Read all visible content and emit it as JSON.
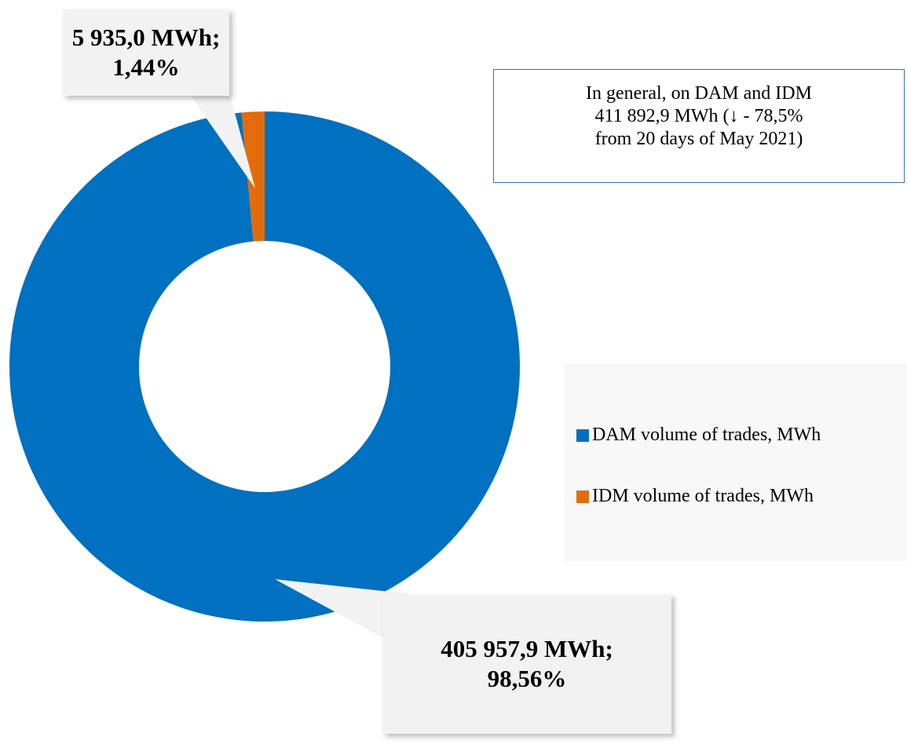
{
  "chart_data": {
    "type": "donut",
    "categories": [
      "DAM volume of trades, MWh",
      "IDM volume of trades, MWh"
    ],
    "values": [
      405957.9,
      5935.0
    ],
    "value_labels": [
      "405 957,9 MWh; 98,56%",
      "5 935,0 MWh; 1,44%"
    ],
    "colors": [
      "#0070c0",
      "#e36c0a"
    ],
    "annotation": [
      "In general, on DAM and IDM",
      "411 892,9 MWh (↓ - 78,5%",
      "from 20 days of May 2021)"
    ],
    "legend": "right"
  }
}
